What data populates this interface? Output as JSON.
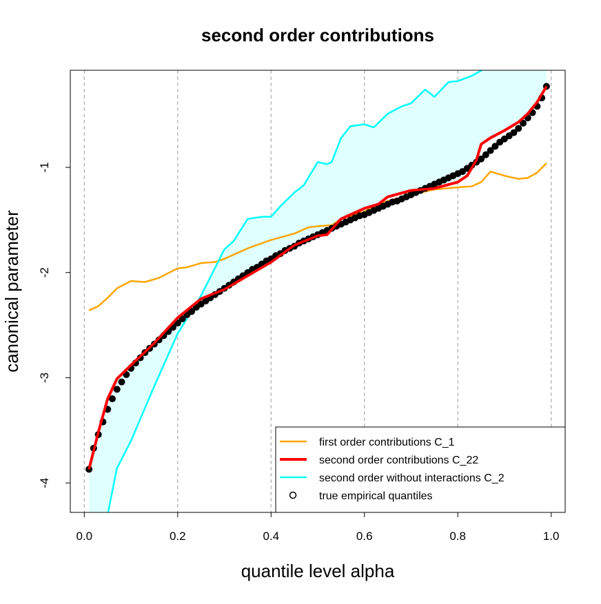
{
  "chart_data": {
    "type": "line",
    "title": "second order contributions",
    "xlabel": "quantile level alpha",
    "ylabel": "canonical parameter",
    "xlim": [
      -0.03,
      1.03
    ],
    "ylim": [
      -4.28,
      -0.077
    ],
    "xticks": [
      "0.0",
      "0.2",
      "0.4",
      "0.6",
      "0.8",
      "1.0"
    ],
    "xtick_values": [
      0,
      0.2,
      0.4,
      0.6,
      0.8,
      1.0
    ],
    "yticks": [
      "-1",
      "-2",
      "-3",
      "-4"
    ],
    "ytick_values": [
      -1,
      -2,
      -3,
      -4
    ],
    "vertical_grid": "dashed gray at x ticks",
    "legend_placement": "bottom-right",
    "fill_color": "#e0ffff",
    "series": [
      {
        "name": "first order contributions C_1",
        "color": "#ffa500",
        "x": [
          0.01,
          0.03,
          0.05,
          0.07,
          0.1,
          0.13,
          0.16,
          0.2,
          0.22,
          0.25,
          0.28,
          0.3,
          0.35,
          0.4,
          0.45,
          0.48,
          0.5,
          0.53,
          0.55,
          0.6,
          0.65,
          0.7,
          0.75,
          0.8,
          0.83,
          0.85,
          0.87,
          0.9,
          0.93,
          0.95,
          0.97,
          0.99
        ],
        "y": [
          -2.36,
          -2.32,
          -2.24,
          -2.15,
          -2.08,
          -2.09,
          -2.05,
          -1.96,
          -1.95,
          -1.91,
          -1.9,
          -1.87,
          -1.77,
          -1.69,
          -1.63,
          -1.57,
          -1.56,
          -1.55,
          -1.49,
          -1.42,
          -1.32,
          -1.26,
          -1.21,
          -1.19,
          -1.18,
          -1.14,
          -1.04,
          -1.08,
          -1.11,
          -1.1,
          -1.05,
          -0.96
        ]
      },
      {
        "name": "second order contributions C_22",
        "color": "#ff0000",
        "x": [
          0.01,
          0.03,
          0.05,
          0.07,
          0.1,
          0.15,
          0.2,
          0.25,
          0.3,
          0.35,
          0.4,
          0.45,
          0.5,
          0.52,
          0.55,
          0.6,
          0.63,
          0.65,
          0.7,
          0.75,
          0.8,
          0.82,
          0.84,
          0.85,
          0.87,
          0.9,
          0.93,
          0.95,
          0.97,
          0.99
        ],
        "y": [
          -3.87,
          -3.52,
          -3.2,
          -3.01,
          -2.88,
          -2.67,
          -2.43,
          -2.25,
          -2.16,
          -2.03,
          -1.9,
          -1.74,
          -1.65,
          -1.64,
          -1.49,
          -1.39,
          -1.35,
          -1.28,
          -1.22,
          -1.2,
          -1.14,
          -1.08,
          -0.93,
          -0.78,
          -0.72,
          -0.65,
          -0.57,
          -0.49,
          -0.38,
          -0.23
        ]
      },
      {
        "name": "second order without interactions C_2",
        "color": "#00ffff",
        "x": [
          0.05,
          0.07,
          0.1,
          0.15,
          0.2,
          0.25,
          0.3,
          0.32,
          0.35,
          0.38,
          0.4,
          0.42,
          0.45,
          0.47,
          0.5,
          0.52,
          0.53,
          0.55,
          0.57,
          0.6,
          0.62,
          0.65,
          0.68,
          0.7,
          0.73,
          0.75,
          0.78,
          0.8,
          0.83,
          0.85,
          0.87
        ],
        "y": [
          -4.3,
          -3.86,
          -3.6,
          -3.08,
          -2.58,
          -2.22,
          -1.78,
          -1.7,
          -1.49,
          -1.47,
          -1.47,
          -1.37,
          -1.24,
          -1.17,
          -0.95,
          -0.97,
          -0.95,
          -0.72,
          -0.61,
          -0.59,
          -0.62,
          -0.49,
          -0.42,
          -0.39,
          -0.26,
          -0.33,
          -0.19,
          -0.18,
          -0.13,
          -0.08,
          -0.02
        ]
      },
      {
        "name": "true empirical quantiles",
        "color": "#000000",
        "marker": "circle",
        "x": [
          0.01,
          0.02,
          0.03,
          0.04,
          0.05,
          0.06,
          0.07,
          0.08,
          0.09,
          0.1,
          0.11,
          0.12,
          0.13,
          0.14,
          0.15,
          0.16,
          0.17,
          0.18,
          0.19,
          0.2,
          0.21,
          0.22,
          0.23,
          0.24,
          0.25,
          0.26,
          0.27,
          0.28,
          0.29,
          0.3,
          0.31,
          0.32,
          0.33,
          0.34,
          0.35,
          0.36,
          0.37,
          0.38,
          0.39,
          0.4,
          0.41,
          0.42,
          0.43,
          0.44,
          0.45,
          0.46,
          0.47,
          0.48,
          0.49,
          0.5,
          0.51,
          0.52,
          0.53,
          0.54,
          0.55,
          0.56,
          0.57,
          0.58,
          0.59,
          0.6,
          0.61,
          0.62,
          0.63,
          0.64,
          0.65,
          0.66,
          0.67,
          0.68,
          0.69,
          0.7,
          0.71,
          0.72,
          0.73,
          0.74,
          0.75,
          0.76,
          0.77,
          0.78,
          0.79,
          0.8,
          0.81,
          0.82,
          0.83,
          0.84,
          0.85,
          0.86,
          0.87,
          0.88,
          0.89,
          0.9,
          0.91,
          0.92,
          0.93,
          0.94,
          0.95,
          0.96,
          0.97,
          0.98,
          0.99
        ],
        "y": [
          -3.87,
          -3.67,
          -3.54,
          -3.42,
          -3.3,
          -3.2,
          -3.11,
          -3.04,
          -2.97,
          -2.91,
          -2.86,
          -2.81,
          -2.76,
          -2.72,
          -2.68,
          -2.64,
          -2.6,
          -2.56,
          -2.52,
          -2.48,
          -2.44,
          -2.4,
          -2.37,
          -2.33,
          -2.3,
          -2.27,
          -2.24,
          -2.21,
          -2.18,
          -2.15,
          -2.12,
          -2.09,
          -2.06,
          -2.03,
          -2.0,
          -1.97,
          -1.95,
          -1.92,
          -1.89,
          -1.87,
          -1.84,
          -1.82,
          -1.79,
          -1.77,
          -1.75,
          -1.72,
          -1.7,
          -1.68,
          -1.66,
          -1.64,
          -1.62,
          -1.6,
          -1.58,
          -1.56,
          -1.54,
          -1.52,
          -1.5,
          -1.48,
          -1.46,
          -1.45,
          -1.43,
          -1.41,
          -1.39,
          -1.37,
          -1.35,
          -1.33,
          -1.32,
          -1.3,
          -1.28,
          -1.26,
          -1.24,
          -1.22,
          -1.2,
          -1.18,
          -1.16,
          -1.14,
          -1.12,
          -1.1,
          -1.08,
          -1.06,
          -1.04,
          -1.01,
          -0.98,
          -0.95,
          -0.92,
          -0.88,
          -0.84,
          -0.8,
          -0.76,
          -0.73,
          -0.7,
          -0.67,
          -0.63,
          -0.58,
          -0.53,
          -0.48,
          -0.42,
          -0.34,
          -0.23
        ]
      }
    ]
  }
}
